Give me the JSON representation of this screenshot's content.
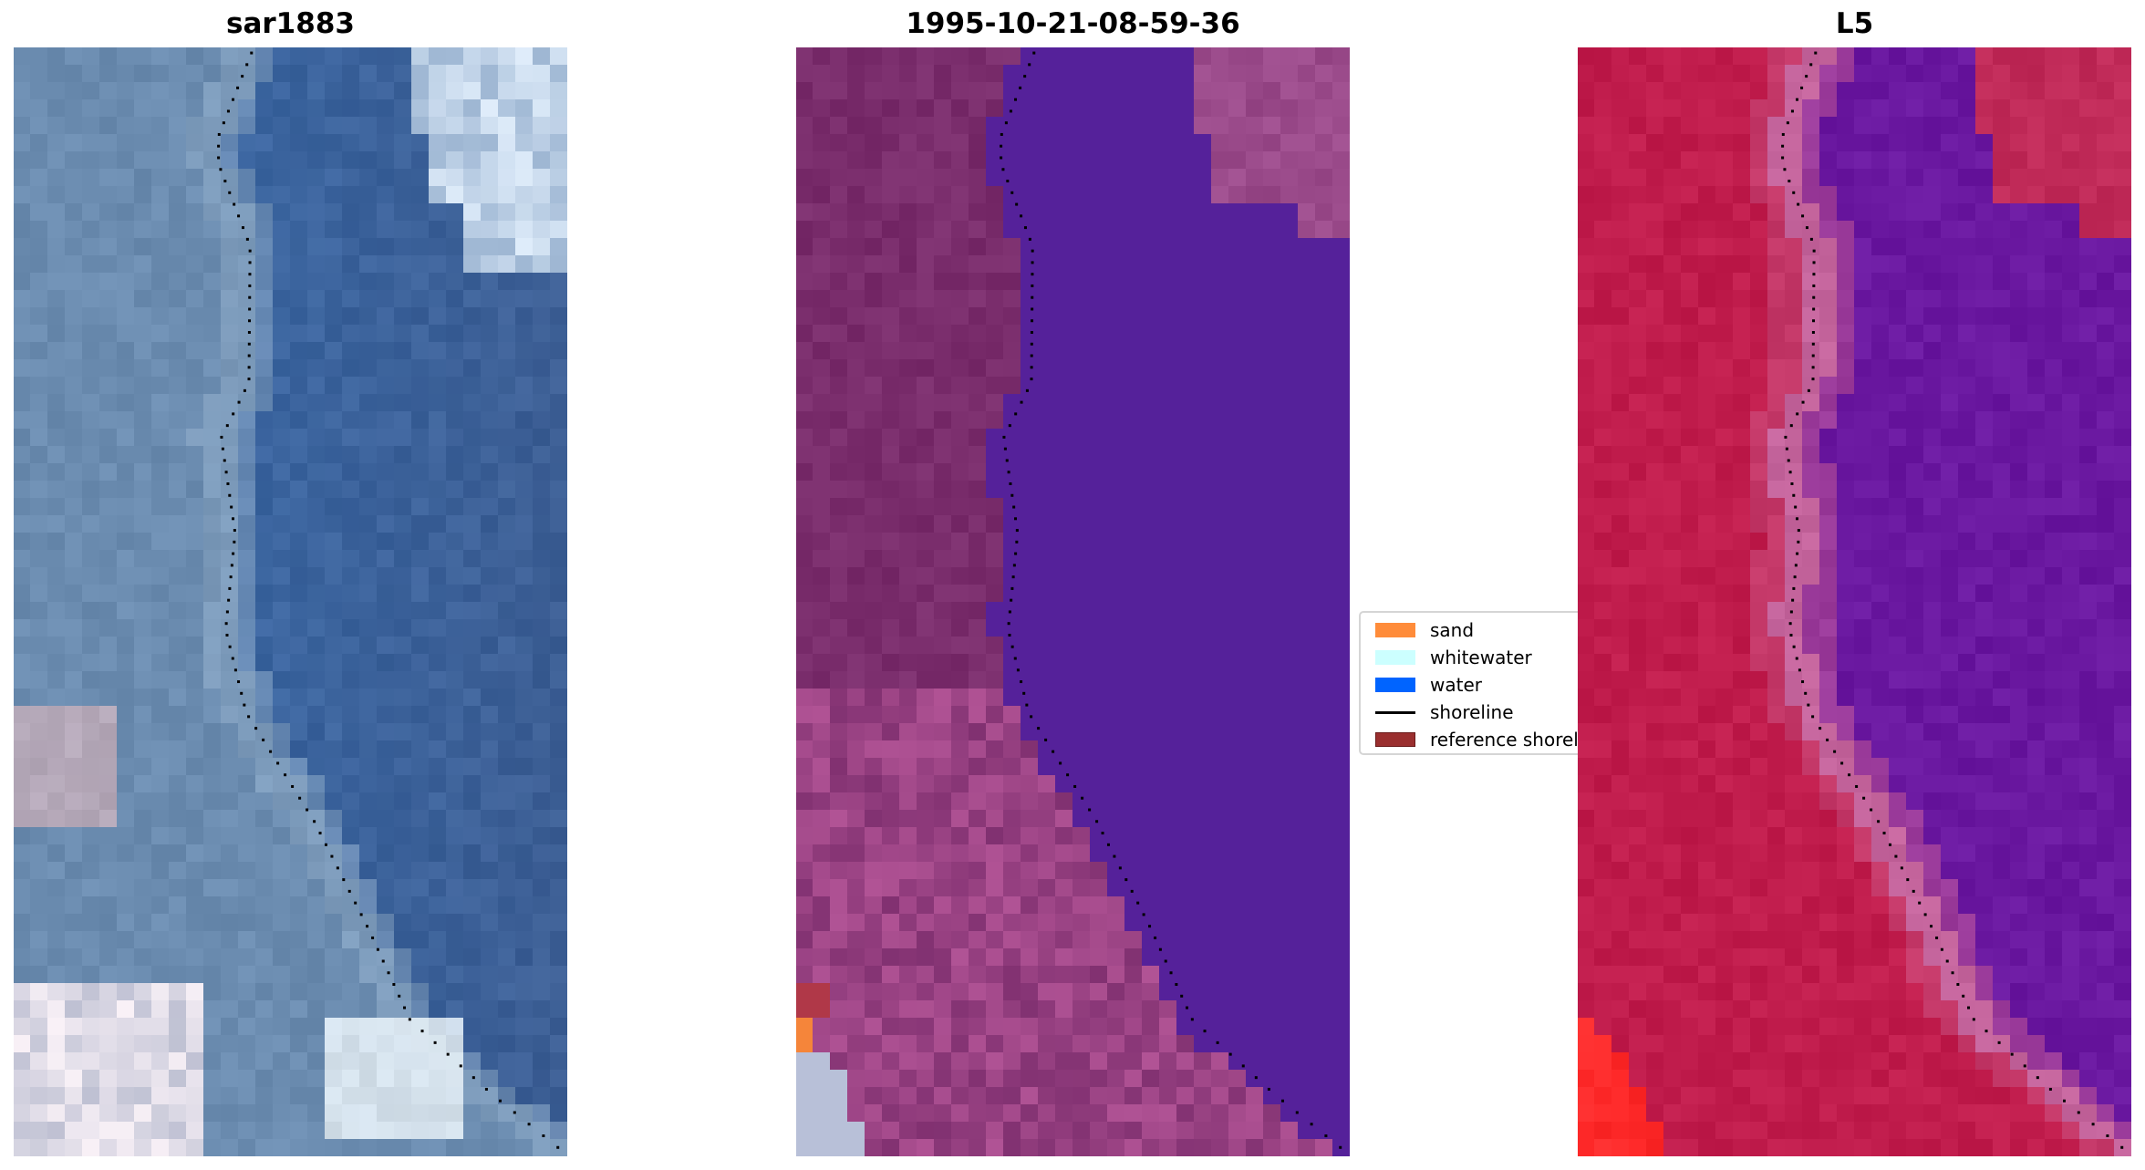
{
  "chart_data": [
    {
      "type": "image",
      "title": "sar1883",
      "shoreline": "dotted black"
    },
    {
      "type": "image",
      "title": "1995-10-21-08-59-36",
      "shoreline": "dotted black"
    },
    {
      "type": "image",
      "title": "L5",
      "shoreline": "dotted black"
    }
  ],
  "legend": {
    "placement": "center",
    "items": [
      {
        "label": "sand",
        "color": "#ff8c3a",
        "kind": "patch"
      },
      {
        "label": "whitewater",
        "color": "#ccffff",
        "kind": "patch"
      },
      {
        "label": "water",
        "color": "#0064ff",
        "kind": "patch"
      },
      {
        "label": "shoreline",
        "color": "#000000",
        "kind": "line"
      },
      {
        "label": "reference shoreline",
        "color": "#9a2f2f",
        "kind": "patch"
      }
    ]
  }
}
